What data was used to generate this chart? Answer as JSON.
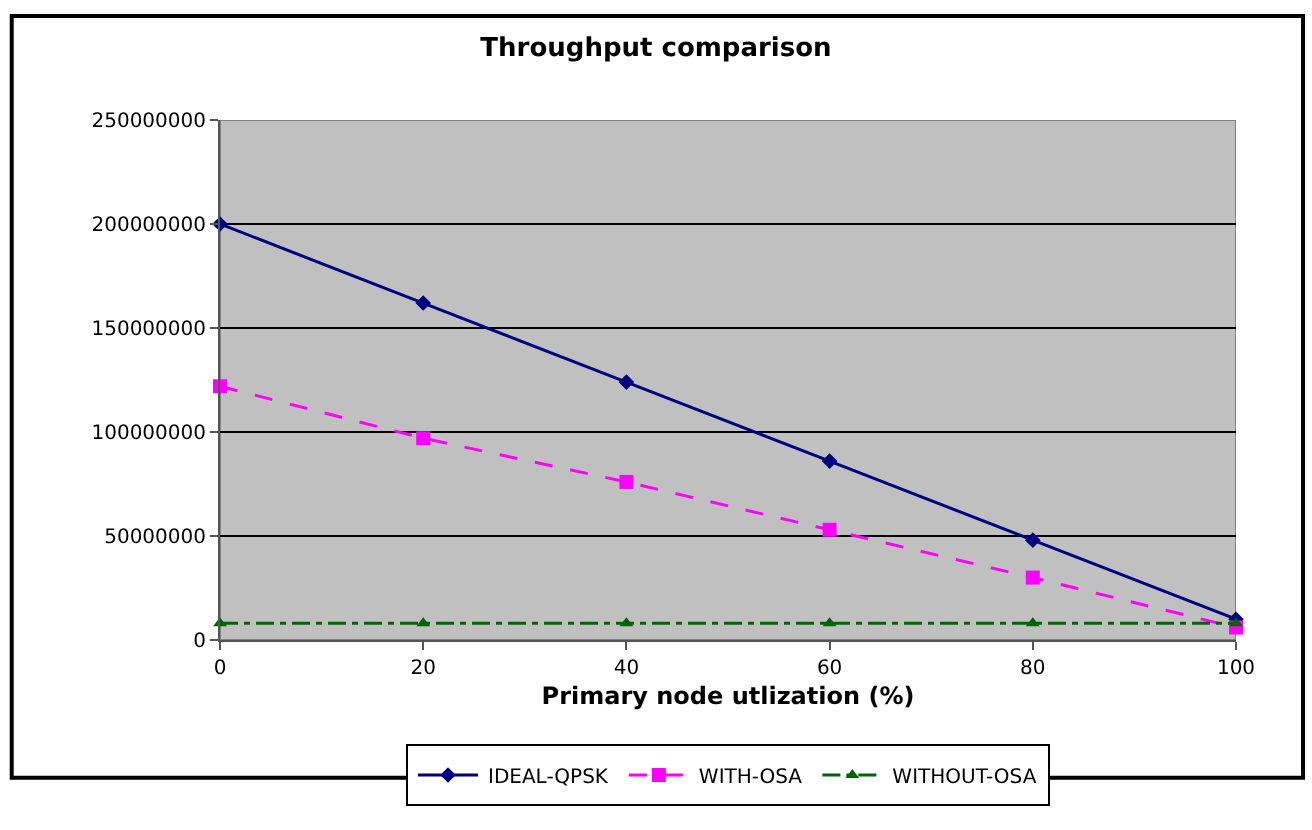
{
  "chart_data": {
    "type": "line",
    "title": "Throughput comparison",
    "xlabel": "Primary node utlization (%)",
    "x": [
      0,
      20,
      40,
      60,
      80,
      100
    ],
    "series": [
      {
        "name": "IDEAL-QPSK",
        "color": "#000080",
        "values": [
          200000000,
          162000000,
          124000000,
          86000000,
          48000000,
          10000000
        ],
        "marker": "diamond",
        "line_style": "solid"
      },
      {
        "name": "WITH-OSA",
        "color": "#ff00ff",
        "values": [
          122000000,
          97000000,
          76000000,
          53000000,
          30000000,
          6000000
        ],
        "marker": "square",
        "line_style": "dashed"
      },
      {
        "name": "WITHOUT-OSA",
        "color": "#006400",
        "values": [
          8000000,
          8000000,
          8000000,
          8000000,
          8000000,
          8000000
        ],
        "marker": "triangle",
        "line_style": "dashdot"
      }
    ],
    "xlim": [
      0,
      100
    ],
    "xticks": [
      0,
      20,
      40,
      60,
      80,
      100
    ],
    "ylim": [
      0,
      250000000
    ],
    "yticks": [
      0,
      50000000,
      100000000,
      150000000,
      200000000,
      250000000
    ],
    "grid": "y",
    "legend": "bottom"
  }
}
